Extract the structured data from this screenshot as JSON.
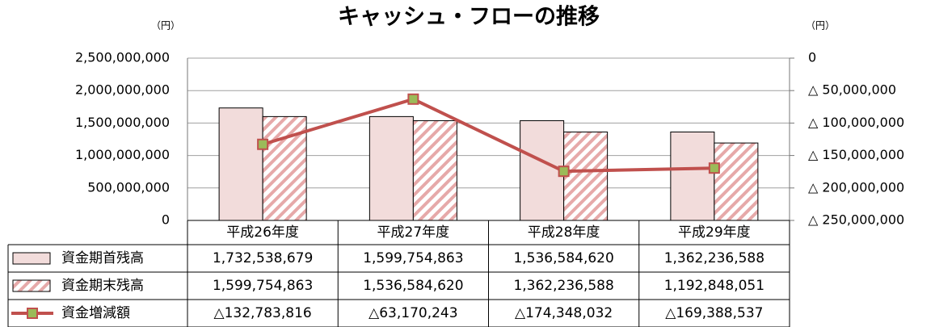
{
  "chart_data": {
    "type": "bar",
    "title": "キャッシュ・フローの推移",
    "y_unit": "（円）",
    "y2_unit": "（円）",
    "categories": [
      "平成26年度",
      "平成27年度",
      "平成28年度",
      "平成29年度"
    ],
    "series": [
      {
        "name": "資金期首残高",
        "type": "bar",
        "color": "#f2dcdb",
        "pattern": "solid",
        "values": [
          1732538679,
          1599754863,
          1536584620,
          1362236588
        ],
        "value_labels": [
          "1,732,538,679",
          "1,599,754,863",
          "1,536,584,620",
          "1,362,236,588"
        ]
      },
      {
        "name": "資金期末残高",
        "type": "bar",
        "color": "#e6a9a9",
        "pattern": "hatch",
        "values": [
          1599754863,
          1536584620,
          1362236588,
          1192848051
        ],
        "value_labels": [
          "1,599,754,863",
          "1,536,584,620",
          "1,362,236,588",
          "1,192,848,051"
        ]
      },
      {
        "name": "資金増減額",
        "type": "line",
        "axis": "y2",
        "color": "#c0504d",
        "marker_color": "#9bbb59",
        "values": [
          -132783816,
          -63170243,
          -174348032,
          -169388537
        ],
        "value_labels": [
          "△132,783,816",
          "△63,170,243",
          "△174,348,032",
          "△169,388,537"
        ]
      }
    ],
    "ylim": [
      0,
      2500000000
    ],
    "yticks": [
      0,
      {
        "value": 500000000,
        "label": "500,000,000"
      },
      {
        "value": 1000000000,
        "label": "1,000,000,000"
      },
      {
        "value": 1500000000,
        "label": "1,500,000,000"
      },
      {
        "value": 2000000000,
        "label": "2,000,000,000"
      },
      {
        "value": 2500000000,
        "label": "2,500,000,000"
      }
    ],
    "y2lim": [
      -250000000,
      0
    ],
    "y2ticks": [
      0,
      {
        "value": -50000000,
        "label": "△ 50,000,000"
      },
      {
        "value": -100000000,
        "label": "△ 100,000,000"
      },
      {
        "value": -150000000,
        "label": "△ 150,000,000"
      },
      {
        "value": -200000000,
        "label": "△ 200,000,000"
      },
      {
        "value": -250000000,
        "label": "△ 250,000,000"
      }
    ],
    "grid": true
  }
}
